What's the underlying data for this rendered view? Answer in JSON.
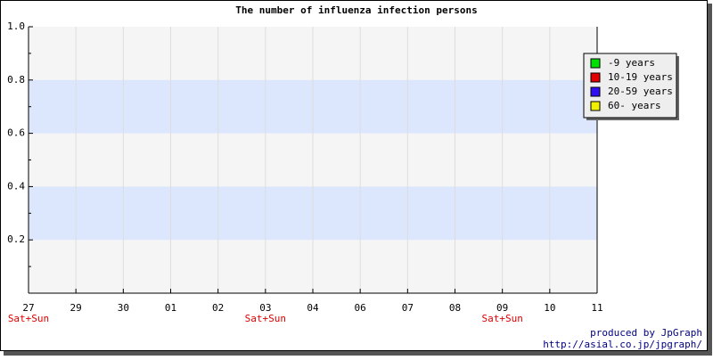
{
  "chart_data": {
    "type": "line",
    "title": "The number of influenza infection persons",
    "categories": [
      "27",
      "29",
      "30",
      "01",
      "02",
      "03",
      "04",
      "06",
      "07",
      "08",
      "09",
      "10",
      "11"
    ],
    "series": [
      {
        "name": "-9 years",
        "color": "#00e000",
        "values": [
          null,
          null,
          null,
          null,
          null,
          null,
          null,
          null,
          null,
          null,
          null,
          null,
          null
        ]
      },
      {
        "name": "10-19 years",
        "color": "#e00000",
        "values": [
          null,
          null,
          null,
          null,
          null,
          null,
          null,
          null,
          null,
          null,
          null,
          null,
          null
        ]
      },
      {
        "name": "20-59 years",
        "color": "#3010f0",
        "values": [
          null,
          null,
          null,
          null,
          null,
          null,
          null,
          null,
          null,
          null,
          null,
          null,
          null
        ]
      },
      {
        "name": "60- years",
        "color": "#f0f000",
        "values": [
          null,
          null,
          null,
          null,
          null,
          null,
          null,
          null,
          null,
          null,
          null,
          null,
          null
        ]
      }
    ],
    "ylim": [
      0,
      1
    ],
    "yticks": [
      0.2,
      0.4,
      0.6,
      0.8,
      {
        "value": 1,
        "label": "1.0"
      }
    ],
    "grid": true,
    "legend": "top-right",
    "annotations": [
      {
        "text": "Sat+Sun",
        "x": "27"
      },
      {
        "text": "Sat+Sun",
        "x": "03"
      },
      {
        "text": "Sat+Sun",
        "x": "09"
      }
    ],
    "footer": [
      "produced by JpGraph",
      "http://asial.co.jp/jpgraph/"
    ]
  }
}
